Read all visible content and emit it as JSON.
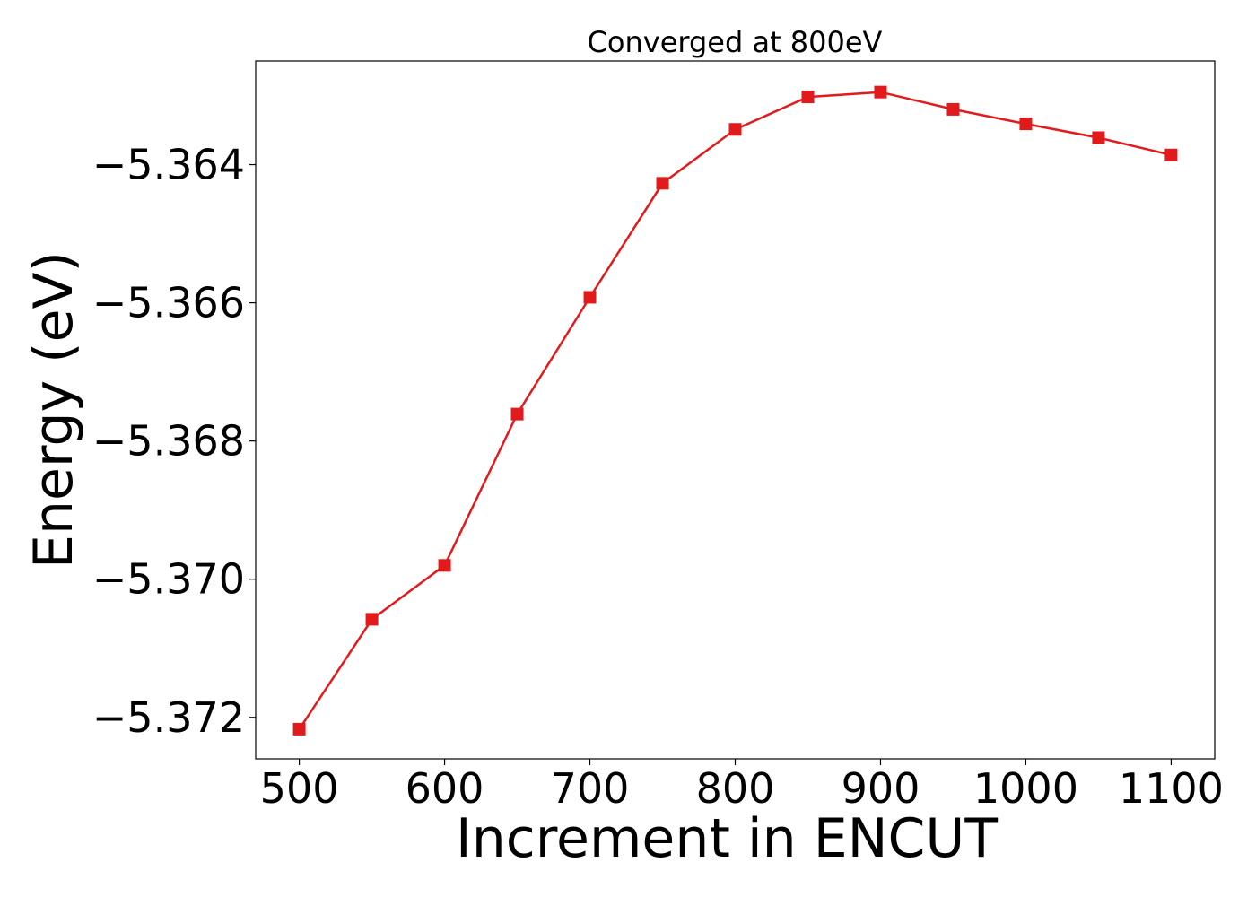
{
  "chart_data": {
    "type": "line",
    "title": "Converged at 800eV",
    "xlabel": "Increment in ENCUT",
    "ylabel": "Energy (eV)",
    "x": [
      500,
      550,
      600,
      650,
      700,
      750,
      800,
      850,
      900,
      950,
      1000,
      1050,
      1100
    ],
    "series": [
      {
        "values": [
          -5.37217,
          -5.37058,
          -5.3698,
          -5.36761,
          -5.36592,
          -5.36427,
          -5.36349,
          -5.36302,
          -5.36295,
          -5.3632,
          -5.36341,
          -5.36361,
          -5.36386
        ],
        "color": "#e31a1c",
        "marker": "square"
      }
    ],
    "xticks": [
      500,
      600,
      700,
      800,
      900,
      1000,
      1100
    ],
    "xtick_labels": [
      "500",
      "600",
      "700",
      "800",
      "900",
      "1000",
      "1100"
    ],
    "yticks": [
      -5.372,
      -5.37,
      -5.368,
      -5.366,
      -5.364
    ],
    "ytick_labels": [
      "−5.372",
      "−5.370",
      "−5.368",
      "−5.366",
      "−5.364"
    ],
    "xlim": [
      470,
      1130
    ],
    "ylim": [
      -5.3726,
      -5.3625
    ],
    "grid": false,
    "legend": "none"
  }
}
